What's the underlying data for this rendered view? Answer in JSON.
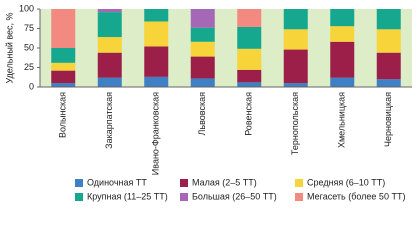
{
  "chart_data": {
    "type": "stacked_bar",
    "ylabel": "Удельный вес, %",
    "categories": [
      "Волынская",
      "Закарпатская",
      "Ивано-Франковская",
      "Львовская",
      "Ровенская",
      "Тернопольская",
      "Хмельницкая",
      "Черновицкая"
    ],
    "series": [
      {
        "name": "Одиночная ТТ",
        "color": "#3f7fc4",
        "values": [
          5,
          12,
          13,
          11,
          6,
          5,
          12,
          10
        ]
      },
      {
        "name": "Малая (2–5 ТТ)",
        "color": "#9c1f4a",
        "values": [
          16,
          32,
          39,
          28,
          16,
          43,
          46,
          34
        ]
      },
      {
        "name": "Средняя (6–10 ТТ)",
        "color": "#f7d43a",
        "values": [
          10,
          20,
          32,
          19,
          27,
          26,
          20,
          30
        ]
      },
      {
        "name": "Крупная (11–25 ТТ)",
        "color": "#16a78f",
        "values": [
          19,
          32,
          16,
          18,
          28,
          26,
          22,
          26
        ]
      },
      {
        "name": "Большая (26–50 ТТ)",
        "color": "#a468b6",
        "values": [
          0,
          4,
          0,
          24,
          0,
          0,
          0,
          0
        ]
      },
      {
        "name": "Мегасеть (более 50 ТТ)",
        "color": "#f28a82",
        "values": [
          50,
          0,
          0,
          0,
          23,
          0,
          0,
          0
        ]
      }
    ],
    "ylim": [
      0,
      100
    ],
    "yticks": [
      0,
      25,
      50,
      75,
      100
    ],
    "background": "#dcedc8"
  }
}
